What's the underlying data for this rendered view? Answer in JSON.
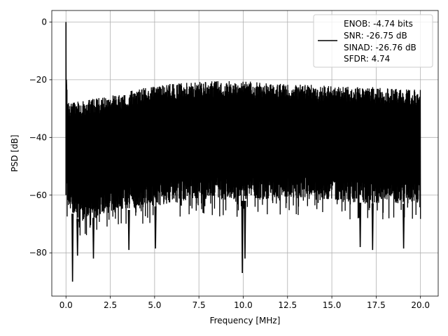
{
  "chart_data": {
    "type": "line",
    "title": "",
    "xlabel": "Frequency [MHz]",
    "ylabel": "PSD [dB]",
    "xlim": [
      -0.8,
      21.0
    ],
    "ylim": [
      -95,
      4
    ],
    "xticks": [
      0.0,
      2.5,
      5.0,
      7.5,
      10.0,
      12.5,
      15.0,
      17.5,
      20.0
    ],
    "xtick_labels": [
      "0.0",
      "2.5",
      "5.0",
      "7.5",
      "10.0",
      "12.5",
      "15.0",
      "17.5",
      "20.0"
    ],
    "yticks": [
      0,
      -20,
      -40,
      -60,
      -80
    ],
    "ytick_labels": [
      "0",
      "−20",
      "−40",
      "−60",
      "−80"
    ],
    "grid": true,
    "legend_position": "top-right",
    "line_color": "#000000",
    "series": [
      {
        "legend_lines": [
          "ENOB: -4.74 bits",
          "SNR: -26.75 dB",
          "SINAD: -26.76 dB",
          "SFDR: 4.74"
        ],
        "color": "#000000",
        "x_range": [
          0.0,
          20.0
        ],
        "dc_peak": {
          "x": 0.0,
          "y": 0.0
        },
        "envelope_upper": {
          "x": [
            0.0,
            0.1,
            0.5,
            1.0,
            2.5,
            5.0,
            7.5,
            10.0,
            12.5,
            15.0,
            17.5,
            20.0
          ],
          "y": [
            -18,
            -27,
            -27.5,
            -27,
            -25.5,
            -22,
            -20.5,
            -20.5,
            -21.5,
            -22,
            -22.5,
            -23.5
          ]
        },
        "envelope_lower": {
          "x": [
            0.0,
            0.5,
            1.0,
            2.5,
            5.0,
            7.5,
            10.0,
            12.5,
            15.0,
            17.5,
            20.0
          ],
          "y": [
            -62,
            -68,
            -69,
            -66,
            -64,
            -61,
            -62,
            -61,
            -62,
            -63,
            -63
          ]
        },
        "deep_minima": [
          {
            "x": 0.37,
            "y": -90
          },
          {
            "x": 0.65,
            "y": -81
          },
          {
            "x": 1.55,
            "y": -82
          },
          {
            "x": 3.55,
            "y": -79
          },
          {
            "x": 5.05,
            "y": -78.5
          },
          {
            "x": 9.95,
            "y": -87
          },
          {
            "x": 10.1,
            "y": -82
          },
          {
            "x": 16.6,
            "y": -78
          },
          {
            "x": 17.3,
            "y": -79
          },
          {
            "x": 19.05,
            "y": -78.5
          }
        ]
      }
    ]
  }
}
